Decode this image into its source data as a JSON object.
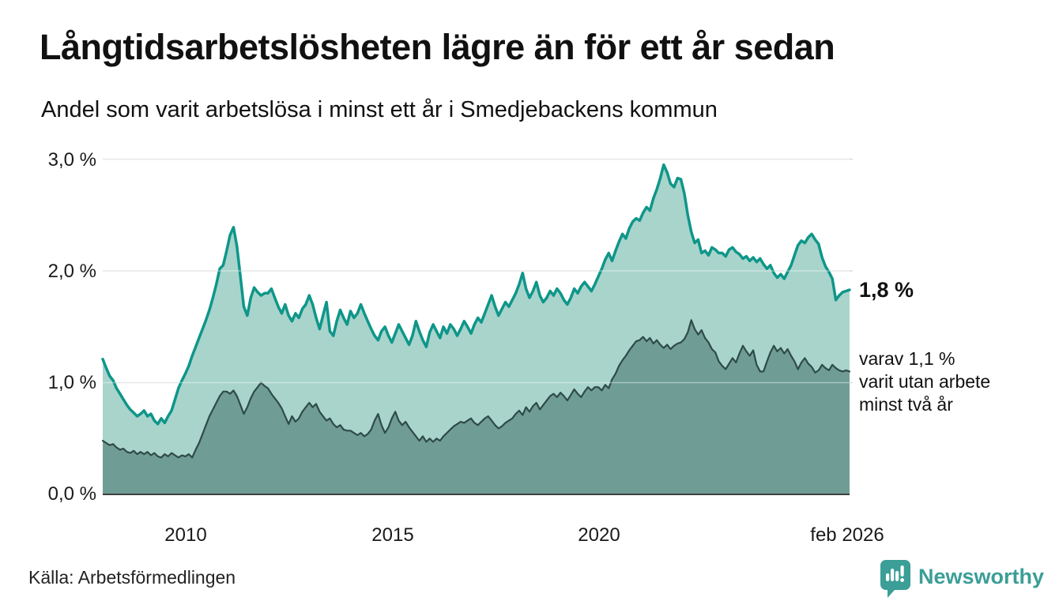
{
  "header": {
    "title": "Långtidsarbetslösheten lägre än för ett år sedan",
    "subtitle": "Andel som varit arbetslösa i minst ett år i Smedjebackens kommun"
  },
  "annotations": {
    "latest_label": "1,8 %",
    "secondary_label": "varav 1,1 %\nvarit utan arbete\nminst två år"
  },
  "source": {
    "label": "Källa: Arbetsförmedlingen"
  },
  "branding": {
    "name": "Newsworthy",
    "color": "#3b9e97",
    "icon": "newsworthy-chart-bubble-icon"
  },
  "chart_data": {
    "type": "area",
    "title": "Långtidsarbetslösheten lägre än för ett år sedan",
    "subtitle": "Andel som varit arbetslösa i minst ett år i Smedjebackens kommun",
    "unit": "%",
    "x_start": "2008-01",
    "x_end": "2026-02",
    "x_tick_labels": [
      "2010",
      "2015",
      "2020",
      "feb 2026"
    ],
    "y_tick_labels": [
      "3,0 %",
      "2,0 %",
      "1,0 %",
      "0,0 %"
    ],
    "y_tick_values": [
      3.0,
      2.0,
      1.0,
      0.0
    ],
    "ylim": [
      0,
      3.0
    ],
    "grid": true,
    "legend_position": "right-annotations",
    "background": "#ffffff",
    "gridline_color": "#dadada",
    "axis_color": "#3d3d3d",
    "series": [
      {
        "name": "Arbetslösa minst ett år",
        "latest_value": 1.8,
        "line_color": "#0e9689",
        "fill_color": "#a8d4cc",
        "line_width": 3.5,
        "values": [
          1.21,
          1.13,
          1.06,
          1.02,
          0.95,
          0.9,
          0.85,
          0.8,
          0.76,
          0.73,
          0.7,
          0.72,
          0.75,
          0.7,
          0.72,
          0.66,
          0.63,
          0.68,
          0.64,
          0.7,
          0.75,
          0.85,
          0.95,
          1.02,
          1.08,
          1.15,
          1.24,
          1.32,
          1.4,
          1.48,
          1.56,
          1.65,
          1.76,
          1.88,
          2.02,
          2.05,
          2.18,
          2.32,
          2.39,
          2.22,
          1.95,
          1.68,
          1.6,
          1.76,
          1.85,
          1.81,
          1.78,
          1.8,
          1.8,
          1.84,
          1.76,
          1.68,
          1.62,
          1.7,
          1.6,
          1.55,
          1.62,
          1.58,
          1.66,
          1.7,
          1.78,
          1.7,
          1.58,
          1.48,
          1.6,
          1.72,
          1.46,
          1.42,
          1.55,
          1.65,
          1.58,
          1.52,
          1.64,
          1.58,
          1.62,
          1.7,
          1.62,
          1.55,
          1.48,
          1.42,
          1.38,
          1.46,
          1.5,
          1.42,
          1.36,
          1.44,
          1.52,
          1.46,
          1.4,
          1.34,
          1.42,
          1.55,
          1.46,
          1.38,
          1.32,
          1.45,
          1.52,
          1.46,
          1.4,
          1.5,
          1.44,
          1.52,
          1.48,
          1.42,
          1.48,
          1.55,
          1.5,
          1.44,
          1.52,
          1.58,
          1.54,
          1.62,
          1.7,
          1.78,
          1.68,
          1.6,
          1.66,
          1.72,
          1.68,
          1.74,
          1.8,
          1.88,
          1.98,
          1.84,
          1.76,
          1.82,
          1.9,
          1.78,
          1.72,
          1.76,
          1.82,
          1.78,
          1.84,
          1.8,
          1.74,
          1.7,
          1.76,
          1.84,
          1.8,
          1.86,
          1.9,
          1.86,
          1.82,
          1.88,
          1.95,
          2.02,
          2.1,
          2.16,
          2.09,
          2.18,
          2.26,
          2.33,
          2.29,
          2.38,
          2.44,
          2.47,
          2.45,
          2.52,
          2.57,
          2.54,
          2.65,
          2.73,
          2.83,
          2.95,
          2.88,
          2.78,
          2.75,
          2.83,
          2.82,
          2.69,
          2.5,
          2.35,
          2.25,
          2.28,
          2.16,
          2.18,
          2.14,
          2.21,
          2.19,
          2.16,
          2.16,
          2.13,
          2.19,
          2.21,
          2.17,
          2.15,
          2.11,
          2.13,
          2.09,
          2.12,
          2.08,
          2.11,
          2.06,
          2.02,
          2.05,
          1.98,
          1.94,
          1.97,
          1.93,
          1.99,
          2.05,
          2.14,
          2.23,
          2.27,
          2.25,
          2.3,
          2.33,
          2.28,
          2.24,
          2.12,
          2.04,
          1.99,
          1.93,
          1.74,
          1.78,
          1.81,
          1.82,
          1.83
        ]
      },
      {
        "name": "varav arbetslösa minst två år",
        "latest_value": 1.1,
        "line_color": "#2f4b46",
        "fill_color": "#6f9d96",
        "line_width": 2.2,
        "values": [
          0.48,
          0.46,
          0.44,
          0.45,
          0.42,
          0.4,
          0.41,
          0.38,
          0.37,
          0.39,
          0.36,
          0.38,
          0.36,
          0.38,
          0.35,
          0.37,
          0.34,
          0.33,
          0.36,
          0.34,
          0.37,
          0.35,
          0.33,
          0.35,
          0.34,
          0.36,
          0.33,
          0.4,
          0.46,
          0.54,
          0.62,
          0.7,
          0.76,
          0.82,
          0.88,
          0.92,
          0.92,
          0.9,
          0.93,
          0.88,
          0.8,
          0.72,
          0.78,
          0.86,
          0.92,
          0.96,
          1.0,
          0.97,
          0.95,
          0.9,
          0.86,
          0.82,
          0.77,
          0.7,
          0.63,
          0.7,
          0.65,
          0.68,
          0.74,
          0.78,
          0.82,
          0.78,
          0.81,
          0.74,
          0.7,
          0.66,
          0.68,
          0.63,
          0.6,
          0.62,
          0.58,
          0.57,
          0.57,
          0.55,
          0.53,
          0.55,
          0.52,
          0.54,
          0.58,
          0.66,
          0.72,
          0.62,
          0.55,
          0.6,
          0.68,
          0.74,
          0.66,
          0.62,
          0.65,
          0.6,
          0.56,
          0.52,
          0.48,
          0.52,
          0.47,
          0.5,
          0.47,
          0.5,
          0.48,
          0.52,
          0.55,
          0.58,
          0.61,
          0.63,
          0.65,
          0.64,
          0.66,
          0.68,
          0.64,
          0.62,
          0.65,
          0.68,
          0.7,
          0.66,
          0.62,
          0.59,
          0.61,
          0.64,
          0.66,
          0.68,
          0.72,
          0.75,
          0.71,
          0.78,
          0.74,
          0.79,
          0.82,
          0.76,
          0.8,
          0.84,
          0.88,
          0.9,
          0.87,
          0.91,
          0.88,
          0.84,
          0.89,
          0.94,
          0.9,
          0.87,
          0.92,
          0.96,
          0.93,
          0.96,
          0.96,
          0.93,
          0.98,
          0.95,
          1.03,
          1.08,
          1.15,
          1.2,
          1.24,
          1.29,
          1.33,
          1.37,
          1.38,
          1.41,
          1.37,
          1.4,
          1.35,
          1.38,
          1.34,
          1.31,
          1.34,
          1.3,
          1.33,
          1.35,
          1.36,
          1.39,
          1.45,
          1.56,
          1.48,
          1.43,
          1.47,
          1.4,
          1.36,
          1.3,
          1.27,
          1.19,
          1.15,
          1.12,
          1.17,
          1.22,
          1.18,
          1.26,
          1.33,
          1.28,
          1.24,
          1.29,
          1.16,
          1.1,
          1.1,
          1.19,
          1.27,
          1.33,
          1.28,
          1.31,
          1.26,
          1.3,
          1.24,
          1.19,
          1.12,
          1.18,
          1.22,
          1.17,
          1.14,
          1.09,
          1.11,
          1.16,
          1.13,
          1.11,
          1.16,
          1.13,
          1.11,
          1.1,
          1.11,
          1.1
        ]
      }
    ]
  }
}
